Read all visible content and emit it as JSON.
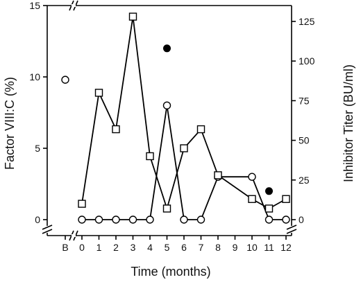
{
  "chart_data": {
    "type": "line",
    "x_categories": [
      "B",
      "0",
      "1",
      "2",
      "3",
      "4",
      "5",
      "6",
      "7",
      "8",
      "9",
      "10",
      "11",
      "12"
    ],
    "xlabel": "Time (months)",
    "ylabel_left": "Factor VIII:C (%)",
    "ylabel_right": "Inhibitor Titer (BU/ml)",
    "ylim_left": [
      0,
      15
    ],
    "ylim_right": [
      0,
      135
    ],
    "yticks_left": [
      "0",
      "5",
      "10",
      "15"
    ],
    "yticks_right": [
      "0",
      "25",
      "50",
      "75",
      "100",
      "125"
    ],
    "axis_break": true,
    "grid": false,
    "series": [
      {
        "axis": "left",
        "marker": "open-circle",
        "connected": true,
        "points": [
          {
            "x": "0",
            "y": 0
          },
          {
            "x": "1",
            "y": 0
          },
          {
            "x": "2",
            "y": 0
          },
          {
            "x": "3",
            "y": 0
          },
          {
            "x": "4",
            "y": 0
          },
          {
            "x": "5",
            "y": 8.0
          },
          {
            "x": "6",
            "y": 0
          },
          {
            "x": "7",
            "y": 0
          },
          {
            "x": "8",
            "y": 3.0
          },
          {
            "x": "10",
            "y": 3.0
          },
          {
            "x": "11",
            "y": 0
          },
          {
            "x": "12",
            "y": 0
          }
        ]
      },
      {
        "axis": "left",
        "marker": "open-circle",
        "connected": false,
        "points": [
          {
            "x": "B",
            "y": 9.8
          }
        ]
      },
      {
        "axis": "right",
        "marker": "open-square",
        "connected": true,
        "points": [
          {
            "x": "0",
            "y": 10
          },
          {
            "x": "1",
            "y": 80
          },
          {
            "x": "2",
            "y": 57
          },
          {
            "x": "3",
            "y": 128
          },
          {
            "x": "4",
            "y": 40
          },
          {
            "x": "5",
            "y": 7
          },
          {
            "x": "6",
            "y": 45
          },
          {
            "x": "7",
            "y": 57
          },
          {
            "x": "8",
            "y": 28
          },
          {
            "x": "10",
            "y": 13
          },
          {
            "x": "11",
            "y": 7
          },
          {
            "x": "12",
            "y": 13
          }
        ]
      },
      {
        "axis": "left",
        "marker": "filled-circle",
        "connected": false,
        "points": [
          {
            "x": "5",
            "y": 12.0
          },
          {
            "x": "11",
            "y": 2.0
          }
        ]
      }
    ]
  }
}
